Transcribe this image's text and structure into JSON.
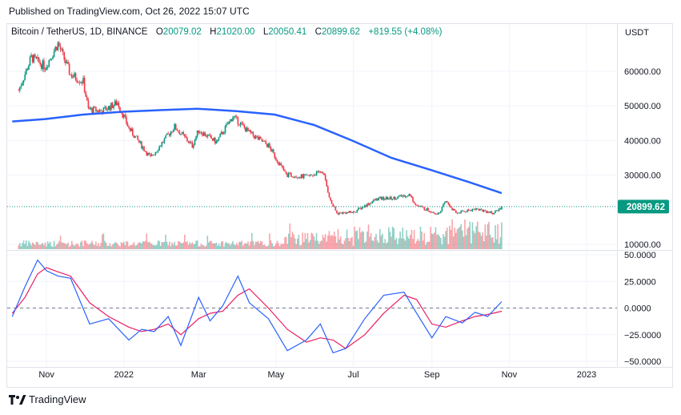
{
  "header": {
    "published": "Published on TradingView.com, Oct 26, 2022 15:07 UTC"
  },
  "legend": {
    "symbol": "Bitcoin / TetherUS, 1D, BINANCE",
    "o_label": "O",
    "o_value": "20079.02",
    "h_label": "H",
    "h_value": "21020.00",
    "l_label": "L",
    "l_value": "20050.41",
    "c_label": "C",
    "c_value": "20899.62",
    "change": "+819.55 (+4.08%)"
  },
  "footer": {
    "brand": "TradingView"
  },
  "colors": {
    "up": "#089981",
    "down": "#f23645",
    "ma": "#2962ff",
    "osc_fast": "#2962ff",
    "osc_slow": "#e91e63",
    "price_line": "#089981",
    "grid": "#f0f3fa"
  },
  "chart_data": [
    {
      "type": "candlestick",
      "symbol": "Bitcoin / TetherUS",
      "interval": "1D",
      "exchange": "BINANCE",
      "y_axis_unit_label": "USDT",
      "ylim": [
        8000,
        70000
      ],
      "y_ticks": [
        {
          "value": 60000,
          "label": "60000.00"
        },
        {
          "value": 50000,
          "label": "50000.00"
        },
        {
          "value": 40000,
          "label": "40000.00"
        },
        {
          "value": 30000,
          "label": "30000.00"
        },
        {
          "value": 10000,
          "label": "10000.00"
        }
      ],
      "last_price": 20899.62,
      "last_price_label": "20899.62",
      "x_ticks": [
        "Nov",
        "2022",
        "Mar",
        "May",
        "Jul",
        "Sep",
        "Nov",
        "2023"
      ],
      "close_path": [
        {
          "date": "2021-10-10",
          "close": 54500
        },
        {
          "date": "2021-10-20",
          "close": 64000
        },
        {
          "date": "2021-10-31",
          "close": 61300
        },
        {
          "date": "2021-11-10",
          "close": 68000
        },
        {
          "date": "2021-11-20",
          "close": 59000
        },
        {
          "date": "2021-11-30",
          "close": 57000
        },
        {
          "date": "2021-12-04",
          "close": 49000
        },
        {
          "date": "2021-12-15",
          "close": 48500
        },
        {
          "date": "2021-12-27",
          "close": 51000
        },
        {
          "date": "2022-01-05",
          "close": 43500
        },
        {
          "date": "2022-01-22",
          "close": 35000
        },
        {
          "date": "2022-02-10",
          "close": 44000
        },
        {
          "date": "2022-02-24",
          "close": 38500
        },
        {
          "date": "2022-03-01",
          "close": 43000
        },
        {
          "date": "2022-03-15",
          "close": 39500
        },
        {
          "date": "2022-03-28",
          "close": 47000
        },
        {
          "date": "2022-04-10",
          "close": 42200
        },
        {
          "date": "2022-04-25",
          "close": 38500
        },
        {
          "date": "2022-05-09",
          "close": 30100
        },
        {
          "date": "2022-05-25",
          "close": 29500
        },
        {
          "date": "2022-06-07",
          "close": 31100
        },
        {
          "date": "2022-06-13",
          "close": 22500
        },
        {
          "date": "2022-06-18",
          "close": 19000
        },
        {
          "date": "2022-07-01",
          "close": 19300
        },
        {
          "date": "2022-07-20",
          "close": 23200
        },
        {
          "date": "2022-08-01",
          "close": 23300
        },
        {
          "date": "2022-08-14",
          "close": 24400
        },
        {
          "date": "2022-08-20",
          "close": 21200
        },
        {
          "date": "2022-09-06",
          "close": 18800
        },
        {
          "date": "2022-09-12",
          "close": 22400
        },
        {
          "date": "2022-09-20",
          "close": 19000
        },
        {
          "date": "2022-10-05",
          "close": 20300
        },
        {
          "date": "2022-10-20",
          "close": 19000
        },
        {
          "date": "2022-10-26",
          "close": 20900
        }
      ],
      "moving_average": [
        {
          "date": "2021-10-05",
          "value": 45500
        },
        {
          "date": "2021-10-31",
          "value": 46200
        },
        {
          "date": "2021-11-30",
          "value": 47500
        },
        {
          "date": "2021-12-31",
          "value": 48300
        },
        {
          "date": "2022-01-31",
          "value": 48800
        },
        {
          "date": "2022-02-28",
          "value": 49200
        },
        {
          "date": "2022-03-31",
          "value": 48500
        },
        {
          "date": "2022-04-30",
          "value": 47500
        },
        {
          "date": "2022-05-31",
          "value": 44500
        },
        {
          "date": "2022-06-30",
          "value": 40000
        },
        {
          "date": "2022-07-31",
          "value": 35000
        },
        {
          "date": "2022-08-31",
          "value": 31500
        },
        {
          "date": "2022-09-30",
          "value": 28000
        },
        {
          "date": "2022-10-26",
          "value": 24800
        }
      ]
    },
    {
      "type": "line",
      "title": "",
      "ylim": [
        -55,
        55
      ],
      "y_ticks": [
        {
          "value": 50,
          "label": "50.0000"
        },
        {
          "value": 25,
          "label": "25.0000"
        },
        {
          "value": 0,
          "label": "0.0000"
        },
        {
          "value": -25,
          "label": "−25.0000"
        },
        {
          "value": -50,
          "label": "−50.0000"
        }
      ],
      "zero_line": 0,
      "series": [
        {
          "key": "fast",
          "points": [
            {
              "date": "2021-10-05",
              "value": -8
            },
            {
              "date": "2021-10-15",
              "value": 20
            },
            {
              "date": "2021-10-25",
              "value": 45
            },
            {
              "date": "2021-11-01",
              "value": 35
            },
            {
              "date": "2021-11-10",
              "value": 30
            },
            {
              "date": "2021-11-20",
              "value": 28
            },
            {
              "date": "2021-12-05",
              "value": -15
            },
            {
              "date": "2021-12-20",
              "value": -10
            },
            {
              "date": "2022-01-05",
              "value": -30
            },
            {
              "date": "2022-01-15",
              "value": -20
            },
            {
              "date": "2022-01-25",
              "value": -22
            },
            {
              "date": "2022-02-05",
              "value": -8
            },
            {
              "date": "2022-02-15",
              "value": -35
            },
            {
              "date": "2022-03-01",
              "value": 10
            },
            {
              "date": "2022-03-10",
              "value": -12
            },
            {
              "date": "2022-03-20",
              "value": 2
            },
            {
              "date": "2022-04-01",
              "value": 30
            },
            {
              "date": "2022-04-10",
              "value": 5
            },
            {
              "date": "2022-04-25",
              "value": -10
            },
            {
              "date": "2022-05-10",
              "value": -40
            },
            {
              "date": "2022-05-25",
              "value": -30
            },
            {
              "date": "2022-06-05",
              "value": -15
            },
            {
              "date": "2022-06-15",
              "value": -42
            },
            {
              "date": "2022-06-25",
              "value": -38
            },
            {
              "date": "2022-07-10",
              "value": -10
            },
            {
              "date": "2022-07-25",
              "value": 12
            },
            {
              "date": "2022-08-10",
              "value": 15
            },
            {
              "date": "2022-08-20",
              "value": -5
            },
            {
              "date": "2022-09-01",
              "value": -28
            },
            {
              "date": "2022-09-12",
              "value": -8
            },
            {
              "date": "2022-09-25",
              "value": -14
            },
            {
              "date": "2022-10-05",
              "value": -4
            },
            {
              "date": "2022-10-15",
              "value": -8
            },
            {
              "date": "2022-10-26",
              "value": 6
            }
          ]
        },
        {
          "key": "slow",
          "points": [
            {
              "date": "2021-10-05",
              "value": -5
            },
            {
              "date": "2021-10-15",
              "value": 10
            },
            {
              "date": "2021-10-25",
              "value": 32
            },
            {
              "date": "2021-11-01",
              "value": 38
            },
            {
              "date": "2021-11-10",
              "value": 34
            },
            {
              "date": "2021-11-20",
              "value": 30
            },
            {
              "date": "2021-12-05",
              "value": 5
            },
            {
              "date": "2021-12-20",
              "value": -8
            },
            {
              "date": "2022-01-05",
              "value": -18
            },
            {
              "date": "2022-01-15",
              "value": -22
            },
            {
              "date": "2022-01-25",
              "value": -20
            },
            {
              "date": "2022-02-05",
              "value": -15
            },
            {
              "date": "2022-02-15",
              "value": -25
            },
            {
              "date": "2022-03-01",
              "value": -10
            },
            {
              "date": "2022-03-10",
              "value": -5
            },
            {
              "date": "2022-03-20",
              "value": -3
            },
            {
              "date": "2022-04-01",
              "value": 12
            },
            {
              "date": "2022-04-10",
              "value": 18
            },
            {
              "date": "2022-04-25",
              "value": 0
            },
            {
              "date": "2022-05-10",
              "value": -20
            },
            {
              "date": "2022-05-25",
              "value": -32
            },
            {
              "date": "2022-06-05",
              "value": -28
            },
            {
              "date": "2022-06-15",
              "value": -30
            },
            {
              "date": "2022-06-25",
              "value": -38
            },
            {
              "date": "2022-07-10",
              "value": -25
            },
            {
              "date": "2022-07-25",
              "value": -5
            },
            {
              "date": "2022-08-10",
              "value": 12
            },
            {
              "date": "2022-08-20",
              "value": 8
            },
            {
              "date": "2022-09-01",
              "value": -15
            },
            {
              "date": "2022-09-12",
              "value": -18
            },
            {
              "date": "2022-09-25",
              "value": -12
            },
            {
              "date": "2022-10-05",
              "value": -8
            },
            {
              "date": "2022-10-15",
              "value": -6
            },
            {
              "date": "2022-10-26",
              "value": -3
            }
          ]
        }
      ]
    }
  ]
}
